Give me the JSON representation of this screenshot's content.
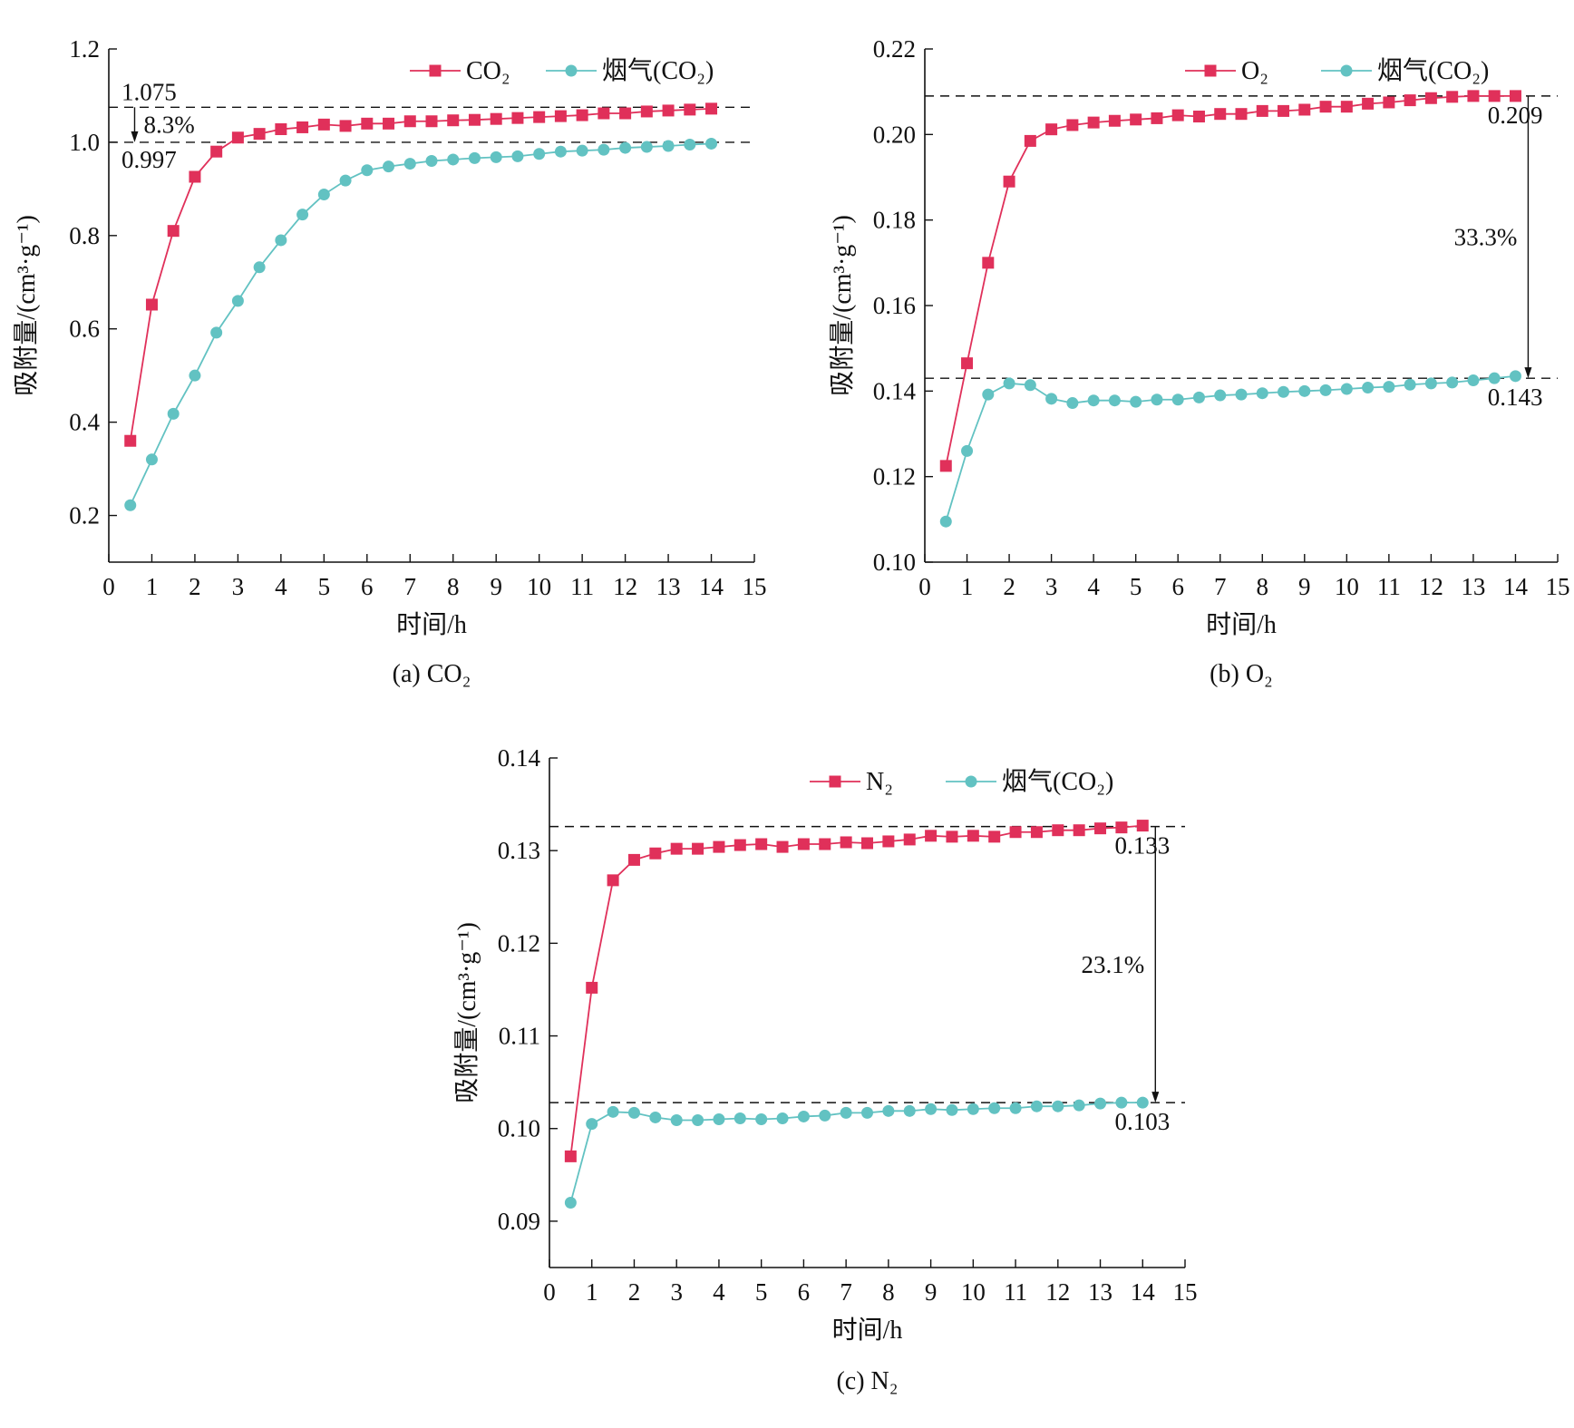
{
  "chart_data": [
    {
      "type": "line",
      "caption": "(a) CO₂",
      "xlabel": "时间/h",
      "ylabel": "吸附量/(cm³·g⁻¹)",
      "xlim": [
        0,
        15
      ],
      "ylim": [
        0.1,
        1.2
      ],
      "xticks": [
        0,
        1,
        2,
        3,
        4,
        5,
        6,
        7,
        8,
        9,
        10,
        11,
        12,
        13,
        14,
        15
      ],
      "yticks": [
        0.2,
        0.4,
        0.6,
        0.8,
        1.0,
        1.2
      ],
      "ytick_labels": [
        "0.2",
        "0.4",
        "0.6",
        "0.8",
        "1.0",
        "1.2"
      ],
      "legend_position": "top-right",
      "series": [
        {
          "name": "CO₂",
          "color": "#e0305a",
          "marker": "square",
          "x": [
            0.5,
            1,
            1.5,
            2,
            2.5,
            3,
            3.5,
            4,
            4.5,
            5,
            5.5,
            6,
            6.5,
            7,
            7.5,
            8,
            8.5,
            9,
            9.5,
            10,
            10.5,
            11,
            11.5,
            12,
            12.5,
            13,
            13.5,
            14
          ],
          "y": [
            0.36,
            0.652,
            0.81,
            0.926,
            0.98,
            1.01,
            1.018,
            1.028,
            1.032,
            1.038,
            1.035,
            1.04,
            1.04,
            1.045,
            1.045,
            1.047,
            1.048,
            1.05,
            1.052,
            1.054,
            1.056,
            1.058,
            1.062,
            1.062,
            1.066,
            1.068,
            1.07,
            1.072
          ]
        },
        {
          "name": "烟气(CO₂)",
          "color": "#62c2c2",
          "marker": "circle",
          "x": [
            0.5,
            1,
            1.5,
            2,
            2.5,
            3,
            3.5,
            4,
            4.5,
            5,
            5.5,
            6,
            6.5,
            7,
            7.5,
            8,
            8.5,
            9,
            9.5,
            10,
            10.5,
            11,
            11.5,
            12,
            12.5,
            13,
            13.5,
            14
          ],
          "y": [
            0.222,
            0.32,
            0.418,
            0.5,
            0.592,
            0.66,
            0.732,
            0.79,
            0.845,
            0.888,
            0.918,
            0.94,
            0.948,
            0.954,
            0.96,
            0.963,
            0.966,
            0.968,
            0.97,
            0.975,
            0.98,
            0.982,
            0.984,
            0.988,
            0.99,
            0.992,
            0.995,
            0.997
          ]
        }
      ],
      "reference_lines": [
        {
          "y": 1.075,
          "label": "1.075",
          "label_side": "above-left"
        },
        {
          "y": 1.0,
          "label": "0.997",
          "label_side": "below-left"
        }
      ],
      "difference": {
        "label": "8.3%",
        "from": 1.075,
        "to": 1.0,
        "at_x": 0.6,
        "label_side": "right"
      }
    },
    {
      "type": "line",
      "caption": "(b) O₂",
      "xlabel": "时间/h",
      "ylabel": "吸附量/(cm³·g⁻¹)",
      "xlim": [
        0,
        15
      ],
      "ylim": [
        0.1,
        0.22
      ],
      "xticks": [
        0,
        1,
        2,
        3,
        4,
        5,
        6,
        7,
        8,
        9,
        10,
        11,
        12,
        13,
        14,
        15
      ],
      "yticks": [
        0.1,
        0.12,
        0.14,
        0.16,
        0.18,
        0.2,
        0.22
      ],
      "ytick_labels": [
        "0.10",
        "0.12",
        "0.14",
        "0.16",
        "0.18",
        "0.20",
        "0.22"
      ],
      "legend_position": "top-right",
      "series": [
        {
          "name": "O₂",
          "color": "#e0305a",
          "marker": "square",
          "x": [
            0.5,
            1,
            1.5,
            2,
            2.5,
            3,
            3.5,
            4,
            4.5,
            5,
            5.5,
            6,
            6.5,
            7,
            7.5,
            8,
            8.5,
            9,
            9.5,
            10,
            10.5,
            11,
            11.5,
            12,
            12.5,
            13,
            13.5,
            14
          ],
          "y": [
            0.1225,
            0.1465,
            0.17,
            0.189,
            0.1985,
            0.2012,
            0.2022,
            0.2028,
            0.2032,
            0.2035,
            0.2038,
            0.2045,
            0.2042,
            0.2048,
            0.2048,
            0.2055,
            0.2055,
            0.2058,
            0.2065,
            0.2065,
            0.2072,
            0.2075,
            0.208,
            0.2085,
            0.2088,
            0.209,
            0.209,
            0.209
          ]
        },
        {
          "name": "烟气(CO₂)",
          "color": "#62c2c2",
          "marker": "circle",
          "x": [
            0.5,
            1,
            1.5,
            2,
            2.5,
            3,
            3.5,
            4,
            4.5,
            5,
            5.5,
            6,
            6.5,
            7,
            7.5,
            8,
            8.5,
            9,
            9.5,
            10,
            10.5,
            11,
            11.5,
            12,
            12.5,
            13,
            13.5,
            14
          ],
          "y": [
            0.1095,
            0.126,
            0.1392,
            0.1418,
            0.1414,
            0.1382,
            0.1372,
            0.1378,
            0.1378,
            0.1375,
            0.138,
            0.138,
            0.1385,
            0.139,
            0.1392,
            0.1395,
            0.1398,
            0.14,
            0.1402,
            0.1405,
            0.1408,
            0.141,
            0.1415,
            0.1418,
            0.142,
            0.1425,
            0.143,
            0.1435
          ]
        }
      ],
      "reference_lines": [
        {
          "y": 0.209,
          "label": "0.209",
          "label_side": "below-right"
        },
        {
          "y": 0.143,
          "label": "0.143",
          "label_side": "below-right"
        }
      ],
      "difference": {
        "label": "33.3%",
        "from": 0.209,
        "to": 0.143,
        "at_x": 14.3,
        "label_side": "left"
      }
    },
    {
      "type": "line",
      "caption": "(c) N₂",
      "xlabel": "时间/h",
      "ylabel": "吸附量/(cm³·g⁻¹)",
      "xlim": [
        0,
        15
      ],
      "ylim": [
        0.085,
        0.14
      ],
      "xticks": [
        0,
        1,
        2,
        3,
        4,
        5,
        6,
        7,
        8,
        9,
        10,
        11,
        12,
        13,
        14,
        15
      ],
      "yticks": [
        0.09,
        0.1,
        0.11,
        0.12,
        0.13,
        0.14
      ],
      "ytick_labels": [
        "0.09",
        "0.10",
        "0.11",
        "0.12",
        "0.13",
        "0.14"
      ],
      "legend_position": "top-right",
      "series": [
        {
          "name": "N₂",
          "color": "#e0305a",
          "marker": "square",
          "x": [
            0.5,
            1,
            1.5,
            2,
            2.5,
            3,
            3.5,
            4,
            4.5,
            5,
            5.5,
            6,
            6.5,
            7,
            7.5,
            8,
            8.5,
            9,
            9.5,
            10,
            10.5,
            11,
            11.5,
            12,
            12.5,
            13,
            13.5,
            14
          ],
          "y": [
            0.097,
            0.1152,
            0.1268,
            0.129,
            0.1297,
            0.1302,
            0.1302,
            0.1304,
            0.1306,
            0.1307,
            0.1304,
            0.1307,
            0.1307,
            0.1309,
            0.1308,
            0.131,
            0.1312,
            0.1316,
            0.1315,
            0.1316,
            0.1315,
            0.132,
            0.132,
            0.1322,
            0.1322,
            0.1324,
            0.1325,
            0.1327
          ]
        },
        {
          "name": "烟气(CO₂)",
          "color": "#62c2c2",
          "marker": "circle",
          "x": [
            0.5,
            1,
            1.5,
            2,
            2.5,
            3,
            3.5,
            4,
            4.5,
            5,
            5.5,
            6,
            6.5,
            7,
            7.5,
            8,
            8.5,
            9,
            9.5,
            10,
            10.5,
            11,
            11.5,
            12,
            12.5,
            13,
            13.5,
            14
          ],
          "y": [
            0.092,
            0.1005,
            0.1018,
            0.1017,
            0.1012,
            0.1009,
            0.1009,
            0.101,
            0.1011,
            0.101,
            0.1011,
            0.1013,
            0.1014,
            0.1017,
            0.1017,
            0.1019,
            0.1019,
            0.1021,
            0.102,
            0.1021,
            0.1022,
            0.1022,
            0.1024,
            0.1024,
            0.1025,
            0.1027,
            0.1028,
            0.1028
          ]
        }
      ],
      "reference_lines": [
        {
          "y": 0.1326,
          "label": "0.133",
          "label_side": "below-right"
        },
        {
          "y": 0.1028,
          "label": "0.103",
          "label_side": "below-right"
        }
      ],
      "difference": {
        "label": "23.1%",
        "from": 0.1326,
        "to": 0.1028,
        "at_x": 14.3,
        "label_side": "left"
      }
    }
  ]
}
